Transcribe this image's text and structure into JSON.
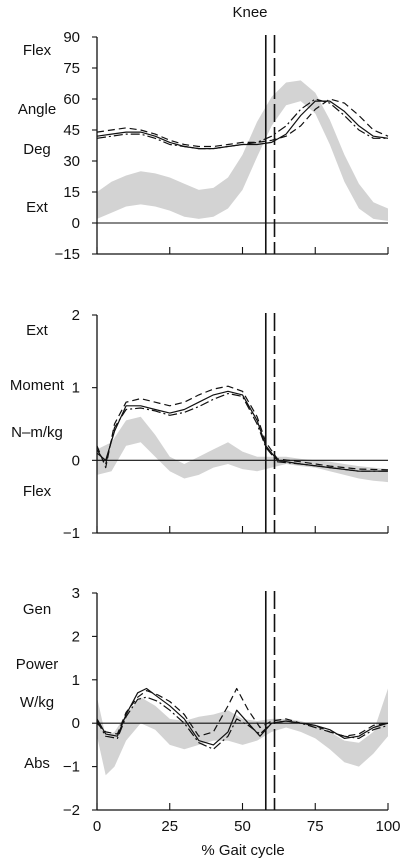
{
  "title": "Knee",
  "xlabel": "% Gait cycle",
  "colors": {
    "ink": "#111111",
    "band": "#d3d3d3"
  },
  "chart_data": [
    {
      "type": "line",
      "title": "Knee",
      "side_labels": {
        "top": "Flex",
        "mid1": "Angle",
        "mid2": "Deg",
        "bottom": "Ext"
      },
      "ylim": [
        -15,
        90
      ],
      "yticks": [
        -15,
        0,
        15,
        30,
        45,
        60,
        75,
        90
      ],
      "ytick_labels": [
        "−15",
        "0",
        "15",
        "30",
        "45",
        "60",
        "75",
        "90"
      ],
      "xlim": [
        0,
        100
      ],
      "xticks": [
        0,
        25,
        50,
        75,
        100
      ],
      "zero_line": 0,
      "vlines": [
        {
          "x": 58,
          "style": "solid"
        },
        {
          "x": 61,
          "style": "dashed"
        }
      ],
      "normal_band": {
        "x": [
          0,
          5,
          10,
          15,
          20,
          25,
          30,
          35,
          40,
          45,
          50,
          55,
          60,
          65,
          70,
          75,
          80,
          85,
          90,
          95,
          100
        ],
        "lower": [
          2,
          5,
          8,
          9,
          8,
          6,
          3,
          2,
          3,
          7,
          16,
          32,
          47,
          57,
          59,
          53,
          38,
          20,
          7,
          2,
          1
        ],
        "upper": [
          15,
          20,
          23,
          25,
          24,
          22,
          19,
          16,
          17,
          22,
          33,
          49,
          61,
          68,
          69,
          63,
          50,
          33,
          19,
          10,
          7
        ]
      },
      "series": [
        {
          "style": "solid",
          "x": [
            0,
            5,
            10,
            15,
            20,
            25,
            30,
            35,
            40,
            45,
            50,
            55,
            60,
            65,
            70,
            75,
            80,
            85,
            90,
            95,
            100
          ],
          "y": [
            42,
            43,
            44,
            44,
            42,
            39,
            37,
            36,
            36,
            37,
            38,
            38,
            39,
            43,
            52,
            59,
            59,
            54,
            47,
            42,
            41
          ]
        },
        {
          "style": "dashed",
          "x": [
            0,
            5,
            10,
            15,
            20,
            25,
            30,
            35,
            40,
            45,
            50,
            55,
            60,
            65,
            70,
            75,
            80,
            85,
            90,
            95,
            100
          ],
          "y": [
            44,
            45,
            46,
            45,
            43,
            40,
            38,
            37,
            37,
            38,
            39,
            39,
            40,
            42,
            47,
            55,
            60,
            58,
            52,
            45,
            42
          ]
        },
        {
          "style": "dashdot",
          "x": [
            0,
            5,
            10,
            15,
            20,
            25,
            30,
            35,
            40,
            45,
            50,
            55,
            60,
            65,
            70,
            75,
            80,
            85,
            90,
            95,
            100
          ],
          "y": [
            41,
            42,
            43,
            43,
            41,
            38,
            37,
            36,
            36,
            37,
            38,
            39,
            42,
            47,
            55,
            60,
            58,
            52,
            45,
            41,
            41
          ]
        }
      ]
    },
    {
      "type": "line",
      "side_labels": {
        "top": "Ext",
        "mid1": "Moment",
        "mid2": "N–m/kg",
        "bottom": "Flex"
      },
      "ylim": [
        -1,
        2
      ],
      "yticks": [
        -1,
        0,
        1,
        2
      ],
      "ytick_labels": [
        "−1",
        "0",
        "1",
        "2"
      ],
      "xlim": [
        0,
        100
      ],
      "xticks": [
        0,
        25,
        50,
        75,
        100
      ],
      "zero_line": 0,
      "vlines": [
        {
          "x": 58,
          "style": "solid"
        },
        {
          "x": 61,
          "style": "dashed"
        }
      ],
      "normal_band": {
        "x": [
          0,
          5,
          10,
          15,
          20,
          25,
          30,
          35,
          40,
          45,
          50,
          55,
          60,
          65,
          70,
          75,
          80,
          85,
          90,
          95,
          100
        ],
        "lower": [
          -0.2,
          -0.15,
          0.2,
          0.25,
          0.05,
          -0.15,
          -0.25,
          -0.2,
          -0.1,
          -0.05,
          -0.12,
          -0.15,
          -0.1,
          -0.05,
          -0.08,
          -0.1,
          -0.15,
          -0.2,
          -0.25,
          -0.28,
          -0.3
        ],
        "upper": [
          0.15,
          0.25,
          0.55,
          0.6,
          0.35,
          0.05,
          -0.05,
          0.05,
          0.15,
          0.25,
          0.12,
          0.05,
          0.05,
          0.05,
          0.02,
          0.0,
          -0.02,
          -0.05,
          -0.08,
          -0.1,
          -0.12
        ]
      },
      "series": [
        {
          "style": "solid",
          "x": [
            0,
            3,
            6,
            10,
            15,
            20,
            25,
            30,
            35,
            40,
            45,
            50,
            55,
            58,
            62,
            70,
            80,
            90,
            100
          ],
          "y": [
            0.1,
            0.0,
            0.4,
            0.75,
            0.75,
            0.7,
            0.65,
            0.7,
            0.8,
            0.9,
            0.95,
            0.9,
            0.55,
            0.2,
            0.0,
            -0.05,
            -0.1,
            -0.15,
            -0.15
          ]
        },
        {
          "style": "dashed",
          "x": [
            0,
            3,
            6,
            10,
            15,
            20,
            25,
            30,
            35,
            40,
            45,
            50,
            55,
            58,
            62,
            70,
            80,
            90,
            100
          ],
          "y": [
            0.2,
            -0.1,
            0.5,
            0.8,
            0.85,
            0.8,
            0.75,
            0.8,
            0.9,
            0.98,
            1.02,
            0.95,
            0.6,
            0.25,
            0.02,
            -0.02,
            -0.08,
            -0.12,
            -0.13
          ]
        },
        {
          "style": "dashdot",
          "x": [
            0,
            3,
            6,
            10,
            15,
            20,
            25,
            30,
            35,
            40,
            45,
            50,
            55,
            58,
            62,
            70,
            80,
            90,
            100
          ],
          "y": [
            0.15,
            -0.05,
            0.45,
            0.7,
            0.72,
            0.68,
            0.62,
            0.66,
            0.74,
            0.84,
            0.92,
            0.88,
            0.5,
            0.18,
            -0.02,
            -0.05,
            -0.1,
            -0.15,
            -0.15
          ]
        }
      ]
    },
    {
      "type": "line",
      "side_labels": {
        "top": "Gen",
        "mid1": "Power",
        "mid2": "W/kg",
        "bottom": "Abs"
      },
      "ylim": [
        -2,
        3
      ],
      "yticks": [
        -2,
        -1,
        0,
        1,
        2,
        3
      ],
      "ytick_labels": [
        "−2",
        "−1",
        "0",
        "1",
        "2",
        "3"
      ],
      "xlim": [
        0,
        100
      ],
      "xticks": [
        0,
        25,
        50,
        75,
        100
      ],
      "xtick_labels": [
        "0",
        "25",
        "50",
        "75",
        "100"
      ],
      "zero_line": 0,
      "vlines": [
        {
          "x": 58,
          "style": "solid"
        },
        {
          "x": 61,
          "style": "dashed"
        }
      ],
      "normal_band": {
        "x": [
          0,
          3,
          6,
          10,
          15,
          20,
          25,
          30,
          35,
          40,
          45,
          50,
          55,
          60,
          65,
          70,
          75,
          80,
          85,
          90,
          95,
          100
        ],
        "lower": [
          -0.3,
          -1.2,
          -1.0,
          -0.4,
          0.0,
          -0.15,
          -0.5,
          -0.6,
          -0.5,
          -0.4,
          -0.4,
          -0.5,
          -0.4,
          -0.2,
          -0.1,
          -0.2,
          -0.35,
          -0.6,
          -0.9,
          -1.0,
          -0.7,
          -0.3
        ],
        "upper": [
          0.6,
          -0.3,
          -0.2,
          0.2,
          0.6,
          0.4,
          0.1,
          0.05,
          0.15,
          0.2,
          0.3,
          0.1,
          0.05,
          0.1,
          0.1,
          0.05,
          -0.05,
          -0.2,
          -0.4,
          -0.45,
          -0.2,
          0.8
        ]
      },
      "series": [
        {
          "style": "solid",
          "x": [
            0,
            3,
            7,
            10,
            14,
            17,
            21,
            25,
            30,
            35,
            40,
            45,
            48,
            52,
            56,
            60,
            65,
            70,
            75,
            80,
            85,
            90,
            95,
            100
          ],
          "y": [
            0.1,
            -0.25,
            -0.3,
            0.2,
            0.7,
            0.8,
            0.6,
            0.4,
            0.1,
            -0.4,
            -0.5,
            -0.2,
            0.3,
            0.0,
            -0.3,
            0.0,
            0.05,
            0.0,
            -0.05,
            -0.15,
            -0.35,
            -0.3,
            -0.1,
            0.0
          ]
        },
        {
          "style": "dashed",
          "x": [
            0,
            3,
            7,
            10,
            14,
            17,
            21,
            25,
            30,
            35,
            40,
            45,
            48,
            52,
            56,
            60,
            65,
            70,
            75,
            80,
            85,
            90,
            95,
            100
          ],
          "y": [
            0.0,
            -0.2,
            -0.25,
            0.25,
            0.6,
            0.75,
            0.65,
            0.5,
            0.2,
            -0.3,
            -0.2,
            0.4,
            0.8,
            0.3,
            -0.1,
            0.05,
            0.1,
            0.0,
            -0.05,
            -0.2,
            -0.3,
            -0.25,
            -0.05,
            0.0
          ]
        },
        {
          "style": "dashdot",
          "x": [
            0,
            3,
            7,
            10,
            14,
            17,
            21,
            25,
            30,
            35,
            40,
            45,
            48,
            52,
            56,
            60,
            65,
            70,
            75,
            80,
            85,
            90,
            95,
            100
          ],
          "y": [
            0.05,
            -0.3,
            -0.35,
            0.15,
            0.55,
            0.6,
            0.5,
            0.3,
            0.0,
            -0.45,
            -0.6,
            -0.3,
            0.1,
            -0.05,
            -0.25,
            0.0,
            0.05,
            0.0,
            -0.1,
            -0.2,
            -0.3,
            -0.35,
            -0.15,
            -0.05
          ]
        }
      ]
    }
  ]
}
